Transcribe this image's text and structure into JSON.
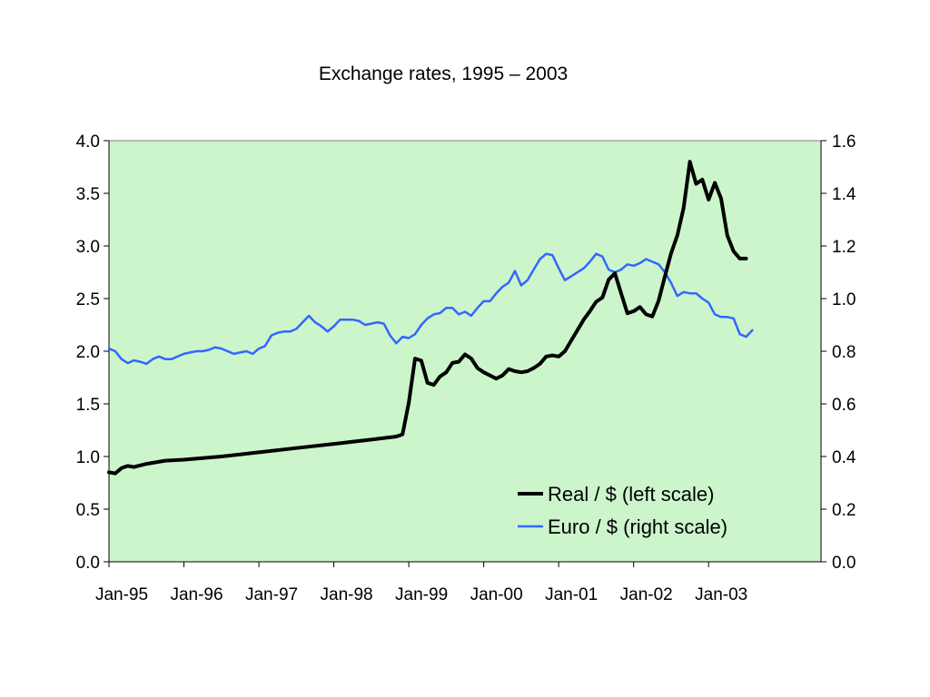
{
  "chart_data": {
    "type": "line",
    "title": "Exchange rates, 1995 – 2003",
    "xlabel": "",
    "ylabel_left": "",
    "ylabel_right": "",
    "plot_background": "#ccf5cc",
    "x_ticks": [
      "Jan-95",
      "Jan-96",
      "Jan-97",
      "Jan-98",
      "Jan-99",
      "Jan-00",
      "Jan-01",
      "Jan-02",
      "Jan-03"
    ],
    "y_left": {
      "min": 0,
      "max": 4,
      "ticks": [
        "0.0",
        "0.5",
        "1.0",
        "1.5",
        "2.0",
        "2.5",
        "3.0",
        "3.5",
        "4.0"
      ]
    },
    "y_right": {
      "min": 0,
      "max": 1.6,
      "ticks": [
        "0.0",
        "0.2",
        "0.4",
        "0.6",
        "0.8",
        "1.0",
        "1.2",
        "1.4",
        "1.6"
      ]
    },
    "legend_position": "bottom-right",
    "series": [
      {
        "name": "Real / $ (left scale)",
        "axis": "left",
        "color": "#000000",
        "points": [
          [
            "1995-01",
            0.85
          ],
          [
            "1995-02",
            0.84
          ],
          [
            "1995-03",
            0.89
          ],
          [
            "1995-04",
            0.91
          ],
          [
            "1995-05",
            0.9
          ],
          [
            "1995-07",
            0.93
          ],
          [
            "1995-10",
            0.96
          ],
          [
            "1996-01",
            0.97
          ],
          [
            "1996-07",
            1.0
          ],
          [
            "1997-01",
            1.04
          ],
          [
            "1997-07",
            1.08
          ],
          [
            "1998-01",
            1.12
          ],
          [
            "1998-07",
            1.16
          ],
          [
            "1998-11",
            1.19
          ],
          [
            "1998-12",
            1.21
          ],
          [
            "1999-01",
            1.51
          ],
          [
            "1999-02",
            1.93
          ],
          [
            "1999-03",
            1.91
          ],
          [
            "1999-04",
            1.7
          ],
          [
            "1999-05",
            1.68
          ],
          [
            "1999-06",
            1.76
          ],
          [
            "1999-07",
            1.8
          ],
          [
            "1999-08",
            1.89
          ],
          [
            "1999-09",
            1.9
          ],
          [
            "1999-10",
            1.97
          ],
          [
            "1999-11",
            1.93
          ],
          [
            "1999-12",
            1.84
          ],
          [
            "2000-01",
            1.8
          ],
          [
            "2000-02",
            1.77
          ],
          [
            "2000-03",
            1.74
          ],
          [
            "2000-04",
            1.77
          ],
          [
            "2000-05",
            1.83
          ],
          [
            "2000-06",
            1.81
          ],
          [
            "2000-07",
            1.8
          ],
          [
            "2000-08",
            1.81
          ],
          [
            "2000-09",
            1.84
          ],
          [
            "2000-10",
            1.88
          ],
          [
            "2000-11",
            1.95
          ],
          [
            "2000-12",
            1.96
          ],
          [
            "2001-01",
            1.95
          ],
          [
            "2001-02",
            2.0
          ],
          [
            "2001-03",
            2.1
          ],
          [
            "2001-04",
            2.2
          ],
          [
            "2001-05",
            2.3
          ],
          [
            "2001-06",
            2.38
          ],
          [
            "2001-07",
            2.47
          ],
          [
            "2001-08",
            2.51
          ],
          [
            "2001-09",
            2.68
          ],
          [
            "2001-10",
            2.74
          ],
          [
            "2001-11",
            2.55
          ],
          [
            "2001-12",
            2.36
          ],
          [
            "2002-01",
            2.38
          ],
          [
            "2002-02",
            2.42
          ],
          [
            "2002-03",
            2.35
          ],
          [
            "2002-04",
            2.33
          ],
          [
            "2002-05",
            2.48
          ],
          [
            "2002-06",
            2.71
          ],
          [
            "2002-07",
            2.93
          ],
          [
            "2002-08",
            3.1
          ],
          [
            "2002-09",
            3.36
          ],
          [
            "2002-10",
            3.8
          ],
          [
            "2002-11",
            3.59
          ],
          [
            "2002-12",
            3.63
          ],
          [
            "2003-01",
            3.44
          ],
          [
            "2003-02",
            3.6
          ],
          [
            "2003-03",
            3.45
          ],
          [
            "2003-04",
            3.1
          ],
          [
            "2003-05",
            2.95
          ],
          [
            "2003-06",
            2.88
          ],
          [
            "2003-07",
            2.88
          ]
        ]
      },
      {
        "name": "Euro / $ (right scale)",
        "axis": "right",
        "color": "#3366ff",
        "points": [
          [
            "1995-01",
            0.81
          ],
          [
            "1995-02",
            0.8
          ],
          [
            "1995-03",
            0.77
          ],
          [
            "1995-04",
            0.755
          ],
          [
            "1995-05",
            0.765
          ],
          [
            "1995-06",
            0.76
          ],
          [
            "1995-07",
            0.752
          ],
          [
            "1995-08",
            0.77
          ],
          [
            "1995-09",
            0.78
          ],
          [
            "1995-10",
            0.77
          ],
          [
            "1995-11",
            0.77
          ],
          [
            "1995-12",
            0.78
          ],
          [
            "1996-01",
            0.79
          ],
          [
            "1996-02",
            0.795
          ],
          [
            "1996-03",
            0.8
          ],
          [
            "1996-04",
            0.8
          ],
          [
            "1996-05",
            0.805
          ],
          [
            "1996-06",
            0.815
          ],
          [
            "1996-07",
            0.81
          ],
          [
            "1996-08",
            0.8
          ],
          [
            "1996-09",
            0.79
          ],
          [
            "1996-10",
            0.795
          ],
          [
            "1996-11",
            0.8
          ],
          [
            "1996-12",
            0.79
          ],
          [
            "1997-01",
            0.81
          ],
          [
            "1997-02",
            0.82
          ],
          [
            "1997-03",
            0.86
          ],
          [
            "1997-04",
            0.87
          ],
          [
            "1997-05",
            0.875
          ],
          [
            "1997-06",
            0.875
          ],
          [
            "1997-07",
            0.885
          ],
          [
            "1997-08",
            0.91
          ],
          [
            "1997-09",
            0.935
          ],
          [
            "1997-10",
            0.91
          ],
          [
            "1997-11",
            0.895
          ],
          [
            "1997-12",
            0.875
          ],
          [
            "1998-01",
            0.895
          ],
          [
            "1998-02",
            0.92
          ],
          [
            "1998-03",
            0.92
          ],
          [
            "1998-04",
            0.92
          ],
          [
            "1998-05",
            0.915
          ],
          [
            "1998-06",
            0.9
          ],
          [
            "1998-07",
            0.905
          ],
          [
            "1998-08",
            0.91
          ],
          [
            "1998-09",
            0.905
          ],
          [
            "1998-10",
            0.86
          ],
          [
            "1998-11",
            0.83
          ],
          [
            "1998-12",
            0.855
          ],
          [
            "1999-01",
            0.85
          ],
          [
            "1999-02",
            0.865
          ],
          [
            "1999-03",
            0.9
          ],
          [
            "1999-04",
            0.925
          ],
          [
            "1999-05",
            0.94
          ],
          [
            "1999-06",
            0.945
          ],
          [
            "1999-07",
            0.965
          ],
          [
            "1999-08",
            0.965
          ],
          [
            "1999-09",
            0.94
          ],
          [
            "1999-10",
            0.95
          ],
          [
            "1999-11",
            0.935
          ],
          [
            "1999-12",
            0.965
          ],
          [
            "2000-01",
            0.99
          ],
          [
            "2000-02",
            0.99
          ],
          [
            "2000-03",
            1.02
          ],
          [
            "2000-04",
            1.045
          ],
          [
            "2000-05",
            1.06
          ],
          [
            "2000-06",
            1.105
          ],
          [
            "2000-07",
            1.05
          ],
          [
            "2000-08",
            1.07
          ],
          [
            "2000-09",
            1.11
          ],
          [
            "2000-10",
            1.15
          ],
          [
            "2000-11",
            1.17
          ],
          [
            "2000-12",
            1.165
          ],
          [
            "2001-01",
            1.115
          ],
          [
            "2001-02",
            1.07
          ],
          [
            "2001-03",
            1.085
          ],
          [
            "2001-04",
            1.1
          ],
          [
            "2001-05",
            1.115
          ],
          [
            "2001-06",
            1.14
          ],
          [
            "2001-07",
            1.17
          ],
          [
            "2001-08",
            1.16
          ],
          [
            "2001-09",
            1.11
          ],
          [
            "2001-10",
            1.1
          ],
          [
            "2001-11",
            1.11
          ],
          [
            "2001-12",
            1.13
          ],
          [
            "2002-01",
            1.125
          ],
          [
            "2002-02",
            1.135
          ],
          [
            "2002-03",
            1.15
          ],
          [
            "2002-04",
            1.14
          ],
          [
            "2002-05",
            1.13
          ],
          [
            "2002-06",
            1.1
          ],
          [
            "2002-07",
            1.06
          ],
          [
            "2002-08",
            1.01
          ],
          [
            "2002-09",
            1.025
          ],
          [
            "2002-10",
            1.02
          ],
          [
            "2002-11",
            1.02
          ],
          [
            "2002-12",
            1.0
          ],
          [
            "2003-01",
            0.985
          ],
          [
            "2003-02",
            0.94
          ],
          [
            "2003-03",
            0.93
          ],
          [
            "2003-04",
            0.93
          ],
          [
            "2003-05",
            0.925
          ],
          [
            "2003-06",
            0.865
          ],
          [
            "2003-07",
            0.855
          ],
          [
            "2003-08",
            0.88
          ]
        ]
      }
    ]
  }
}
